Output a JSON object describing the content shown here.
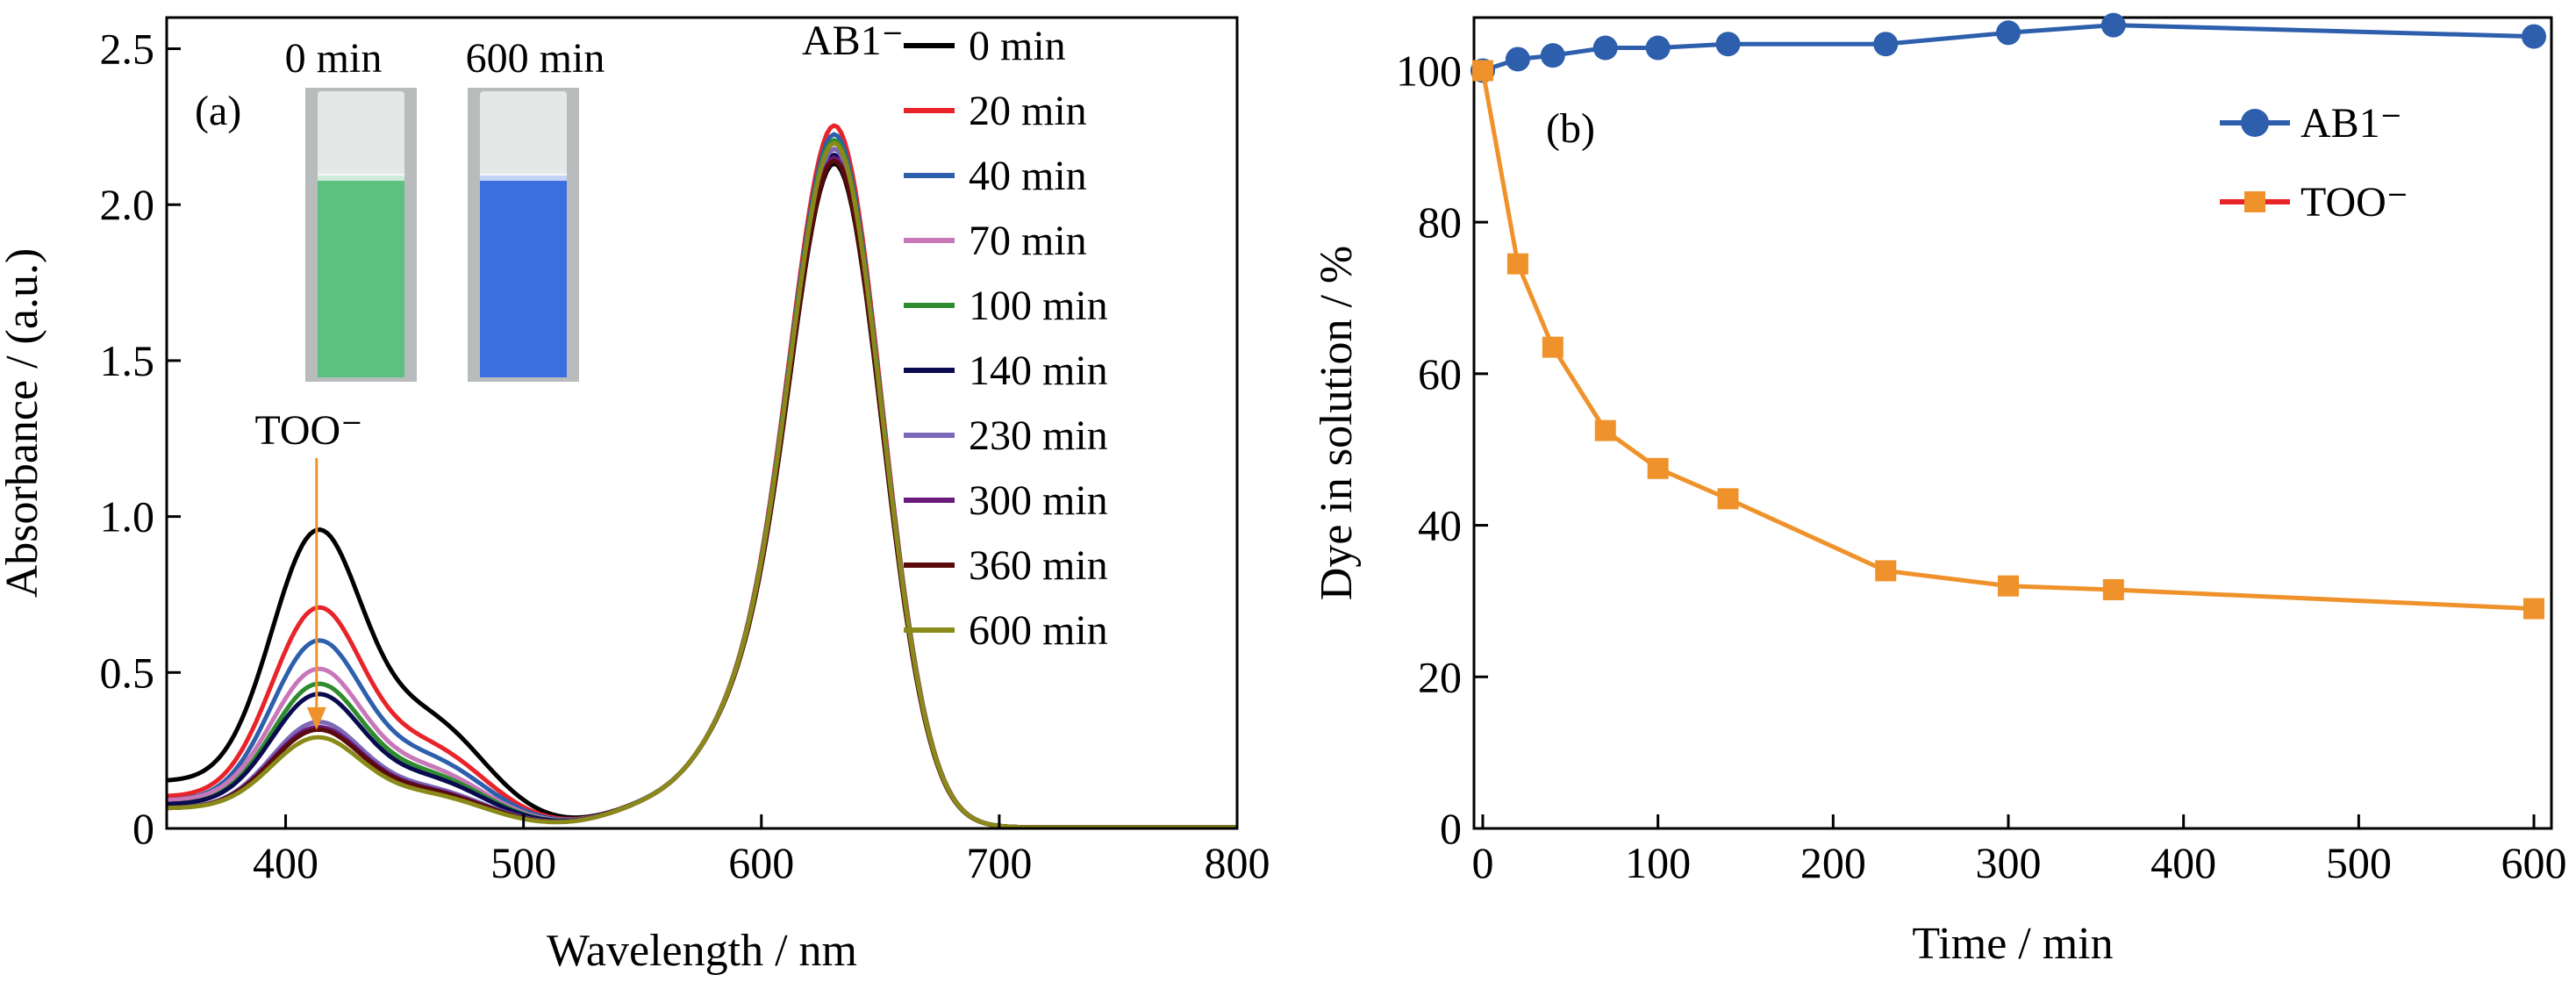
{
  "chart_data": [
    {
      "type": "line",
      "panel_label": "(a)",
      "xlabel": "Wavelength / nm",
      "ylabel": "Absorbance / (a.u.)",
      "xlim": [
        350,
        800
      ],
      "ylim": [
        0,
        2.6
      ],
      "xticks": [
        400,
        500,
        600,
        700,
        800
      ],
      "yticks": [
        0,
        0.5,
        1.0,
        1.5,
        2.0,
        2.5
      ],
      "ytick_labels": [
        "0",
        "0.5",
        "1.0",
        "1.5",
        "2.0",
        "2.5"
      ],
      "grid": false,
      "legend_position": "top-right",
      "annotations": [
        {
          "text": "AB1⁻",
          "color": "#2e5fac"
        },
        {
          "text": "TOO⁻",
          "color": "#f0922b",
          "arrow": "down",
          "at_x": 413
        }
      ],
      "inset_photo": {
        "labels": [
          "0 min",
          "600 min"
        ],
        "colors": [
          "#5cc07f",
          "#3b6fe0"
        ]
      },
      "too_peak_x": 413,
      "ab1_peak_x": 631,
      "series": [
        {
          "name": "0 min",
          "color": "#000000",
          "too_peak": 1.06,
          "ab1_peak": 2.25,
          "base350": 0.12
        },
        {
          "name": "20 min",
          "color": "#e8242a",
          "too_peak": 0.79,
          "ab1_peak": 2.38,
          "base350": 0.08
        },
        {
          "name": "40 min",
          "color": "#2e5fac",
          "too_peak": 0.67,
          "ab1_peak": 2.35,
          "base350": 0.07
        },
        {
          "name": "70 min",
          "color": "#c878b8",
          "too_peak": 0.56,
          "ab1_peak": 2.3,
          "base350": 0.07
        },
        {
          "name": "100 min",
          "color": "#2e8b2e",
          "too_peak": 0.51,
          "ab1_peak": 2.33,
          "base350": 0.06
        },
        {
          "name": "140 min",
          "color": "#0a0a50",
          "too_peak": 0.47,
          "ab1_peak": 2.28,
          "base350": 0.06
        },
        {
          "name": "230 min",
          "color": "#7b68b8",
          "too_peak": 0.37,
          "ab1_peak": 2.3,
          "base350": 0.05
        },
        {
          "name": "300 min",
          "color": "#6a1a7a",
          "too_peak": 0.35,
          "ab1_peak": 2.27,
          "base350": 0.05
        },
        {
          "name": "360 min",
          "color": "#5a0a0a",
          "too_peak": 0.34,
          "ab1_peak": 2.26,
          "base350": 0.05
        },
        {
          "name": "600 min",
          "color": "#8a8a1a",
          "too_peak": 0.31,
          "ab1_peak": 2.32,
          "base350": 0.05
        }
      ]
    },
    {
      "type": "line",
      "panel_label": "(b)",
      "xlabel": "Time / min",
      "ylabel": "Dye in solution / %",
      "xlim": [
        -5,
        610
      ],
      "ylim": [
        0,
        107
      ],
      "xticks": [
        0,
        100,
        200,
        300,
        400,
        500,
        600
      ],
      "yticks": [
        0,
        20,
        40,
        60,
        80,
        100
      ],
      "grid": false,
      "legend_position": "top-right",
      "x": [
        0,
        20,
        40,
        70,
        100,
        140,
        230,
        300,
        360,
        600
      ],
      "series": [
        {
          "name": "AB1⁻",
          "color": "#2e5fac",
          "marker": "circle",
          "values": [
            100,
            101.5,
            102,
            103,
            103,
            103.5,
            103.5,
            105,
            106,
            104.5
          ]
        },
        {
          "name": "TOO⁻",
          "color": "#f0922b",
          "marker": "square",
          "legend_line_color": "#e8242a",
          "values": [
            100,
            74.5,
            63.5,
            52.5,
            47.5,
            43.5,
            34,
            32,
            31.5,
            29
          ]
        }
      ]
    }
  ]
}
